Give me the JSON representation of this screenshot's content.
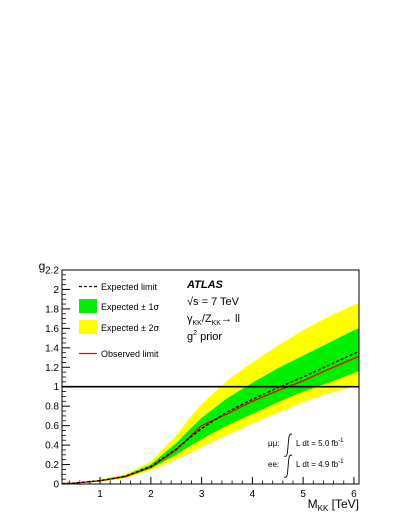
{
  "chart_data": {
    "type": "area",
    "experiment": "ATLAS",
    "energy_label": "√s = 7 TeV",
    "process": {
      "gamma": "γ",
      "sub_kk": "KK",
      "z": "/Z",
      "arrow": "→ ll"
    },
    "prior": {
      "base": "g",
      "sup": "2",
      "rest": " prior"
    },
    "lumi": [
      {
        "channel": "μμ:",
        "text": "L dt = 5.0 fb",
        "sup": "-1"
      },
      {
        "channel": "ee:",
        "text": "L dt = 4.9 fb",
        "sup": "-1"
      }
    ],
    "ylabel": "g",
    "xlabel": {
      "main": "M",
      "sub": "KK",
      "unit": " [TeV]"
    },
    "xlim": [
      0.25,
      6.1
    ],
    "ylim": [
      0,
      2.2
    ],
    "x_ticks": [
      1,
      2,
      3,
      4,
      5,
      6
    ],
    "x_tick_labels": [
      "1",
      "2",
      "3",
      "4",
      "5",
      "6"
    ],
    "y_ticks": [
      0,
      0.2,
      0.4,
      0.6,
      0.8,
      1,
      1.2,
      1.4,
      1.6,
      1.8,
      2,
      2.2
    ],
    "y_tick_labels": [
      "0",
      "0.2",
      "0.4",
      "0.6",
      "0.8",
      "1",
      "1.2",
      "1.4",
      "1.6",
      "1.8",
      "2",
      "2.2"
    ],
    "reference_line": 1.0,
    "legend": [
      {
        "key": "expected",
        "label": "Expected limit"
      },
      {
        "key": "band1",
        "label": "Expected ± 1σ"
      },
      {
        "key": "band2",
        "label": "Expected ± 2σ"
      },
      {
        "key": "observed",
        "label": "Observed limit"
      }
    ],
    "x": [
      0.25,
      0.5,
      1.0,
      1.5,
      2.0,
      2.5,
      2.8,
      3.0,
      3.5,
      4.0,
      4.5,
      5.0,
      5.5,
      6.0,
      6.1
    ],
    "series": [
      {
        "key": "expected",
        "values": [
          0.003,
          0.01,
          0.035,
          0.08,
          0.18,
          0.36,
          0.49,
          0.57,
          0.74,
          0.87,
          0.99,
          1.1,
          1.22,
          1.34,
          1.36
        ]
      },
      {
        "key": "observed",
        "values": [
          0.003,
          0.01,
          0.032,
          0.075,
          0.17,
          0.35,
          0.5,
          0.6,
          0.72,
          0.85,
          0.96,
          1.06,
          1.18,
          1.29,
          1.31
        ]
      },
      {
        "key": "band1_low",
        "values": [
          0.002,
          0.008,
          0.03,
          0.07,
          0.16,
          0.3,
          0.4,
          0.46,
          0.6,
          0.72,
          0.84,
          0.95,
          1.04,
          1.14,
          1.16
        ]
      },
      {
        "key": "band1_high",
        "values": [
          0.004,
          0.012,
          0.04,
          0.09,
          0.2,
          0.42,
          0.58,
          0.68,
          0.88,
          1.04,
          1.19,
          1.32,
          1.45,
          1.58,
          1.6
        ]
      },
      {
        "key": "band2_low",
        "values": [
          0.001,
          0.006,
          0.025,
          0.06,
          0.14,
          0.25,
          0.32,
          0.38,
          0.5,
          0.62,
          0.73,
          0.84,
          0.93,
          1.0,
          1.02
        ]
      },
      {
        "key": "band2_high",
        "values": [
          0.005,
          0.014,
          0.045,
          0.1,
          0.23,
          0.5,
          0.7,
          0.82,
          1.06,
          1.25,
          1.42,
          1.58,
          1.72,
          1.84,
          1.86
        ]
      }
    ],
    "colors": {
      "band1": "#00ee00",
      "band2": "#ffff00",
      "observed": "#ee0000",
      "expected": "#000000",
      "reference": "#000000"
    },
    "grid": false,
    "legend_position": "top-left"
  }
}
